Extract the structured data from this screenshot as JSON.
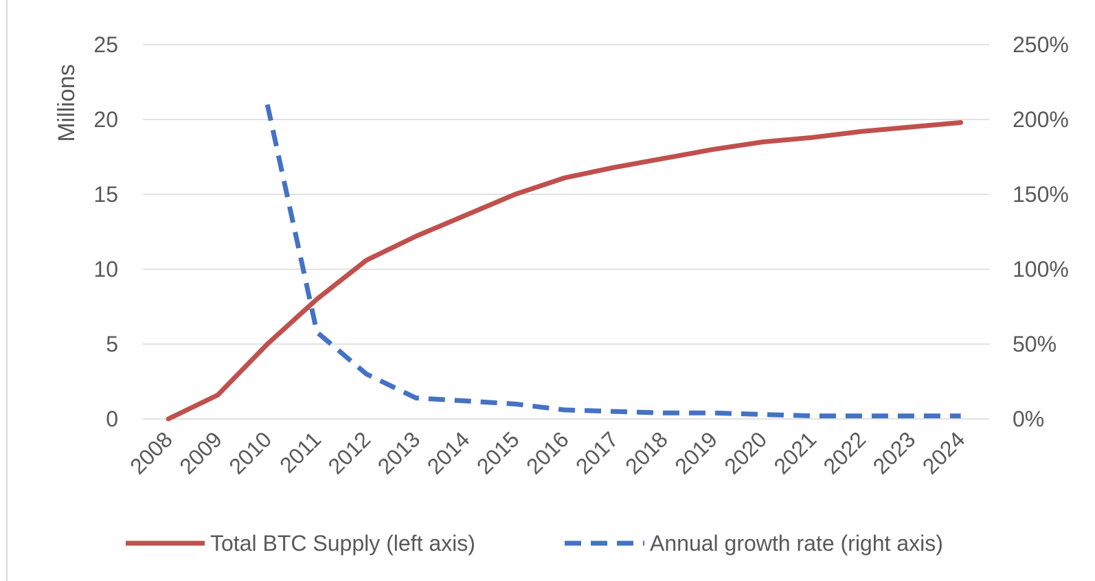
{
  "chart_data": {
    "type": "line",
    "x": [
      "2008",
      "2009",
      "2010",
      "2011",
      "2012",
      "2013",
      "2014",
      "2015",
      "2016",
      "2017",
      "2018",
      "2019",
      "2020",
      "2021",
      "2022",
      "2023",
      "2024"
    ],
    "y_left": {
      "label": "Millions",
      "ticks": [
        "0",
        "5",
        "10",
        "15",
        "20",
        "25"
      ],
      "range": [
        0,
        25
      ]
    },
    "y_right": {
      "ticks": [
        "0%",
        "50%",
        "100%",
        "150%",
        "200%",
        "250%"
      ],
      "range": [
        0,
        250
      ]
    },
    "series": [
      {
        "name": "Total BTC Supply (left axis)",
        "axis": "left",
        "color": "#c0504d",
        "style": "solid",
        "values": [
          0,
          1.6,
          5.0,
          8.0,
          10.6,
          12.2,
          13.6,
          15.0,
          16.1,
          16.8,
          17.4,
          18.0,
          18.5,
          18.8,
          19.2,
          19.5,
          19.8
        ]
      },
      {
        "name": "Annual growth rate (right axis)",
        "axis": "right",
        "color": "#4472c4",
        "style": "dashed",
        "values": [
          null,
          null,
          210,
          58,
          30,
          14,
          12,
          10,
          6,
          5,
          4,
          4,
          3,
          2,
          2,
          2,
          2
        ]
      }
    ],
    "grid": true,
    "legend_position": "bottom"
  }
}
